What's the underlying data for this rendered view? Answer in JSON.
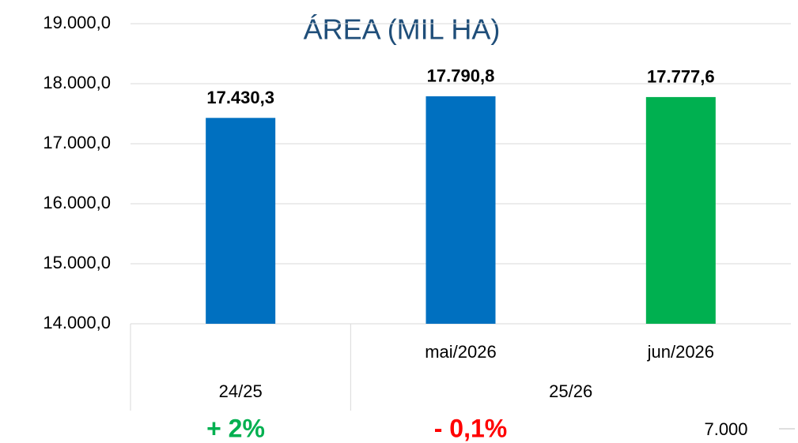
{
  "chart_data": {
    "type": "bar",
    "title": "ÁREA (MIL HA)",
    "categories": [
      null,
      "mai/2026",
      "jun/2026"
    ],
    "groups": [
      {
        "label": "24/25",
        "span": 1
      },
      {
        "label": "25/26",
        "span": 2
      }
    ],
    "series": [
      {
        "colors": [
          "#0070c0",
          "#0070c0",
          "#00b050"
        ],
        "values": [
          17430.3,
          17790.8,
          17777.6
        ],
        "value_labels": [
          "17.430,3",
          "17.790,8",
          "17.777,6"
        ]
      }
    ],
    "ylim": [
      14000,
      19000
    ],
    "yticks": [
      {
        "value": 14000,
        "label": "14.000,0"
      },
      {
        "value": 15000,
        "label": "15.000,0"
      },
      {
        "value": 16000,
        "label": "16.000,0"
      },
      {
        "value": 17000,
        "label": "17.000,0"
      },
      {
        "value": 18000,
        "label": "18.000,0"
      },
      {
        "value": 19000,
        "label": "19.000,0"
      }
    ],
    "grid": true,
    "annotations": [
      {
        "text": "+ 2%",
        "color": "#00b050"
      },
      {
        "text": "- 0,1%",
        "color": "#ff0000"
      },
      {
        "text": "7.000",
        "color": "#000000"
      }
    ]
  }
}
